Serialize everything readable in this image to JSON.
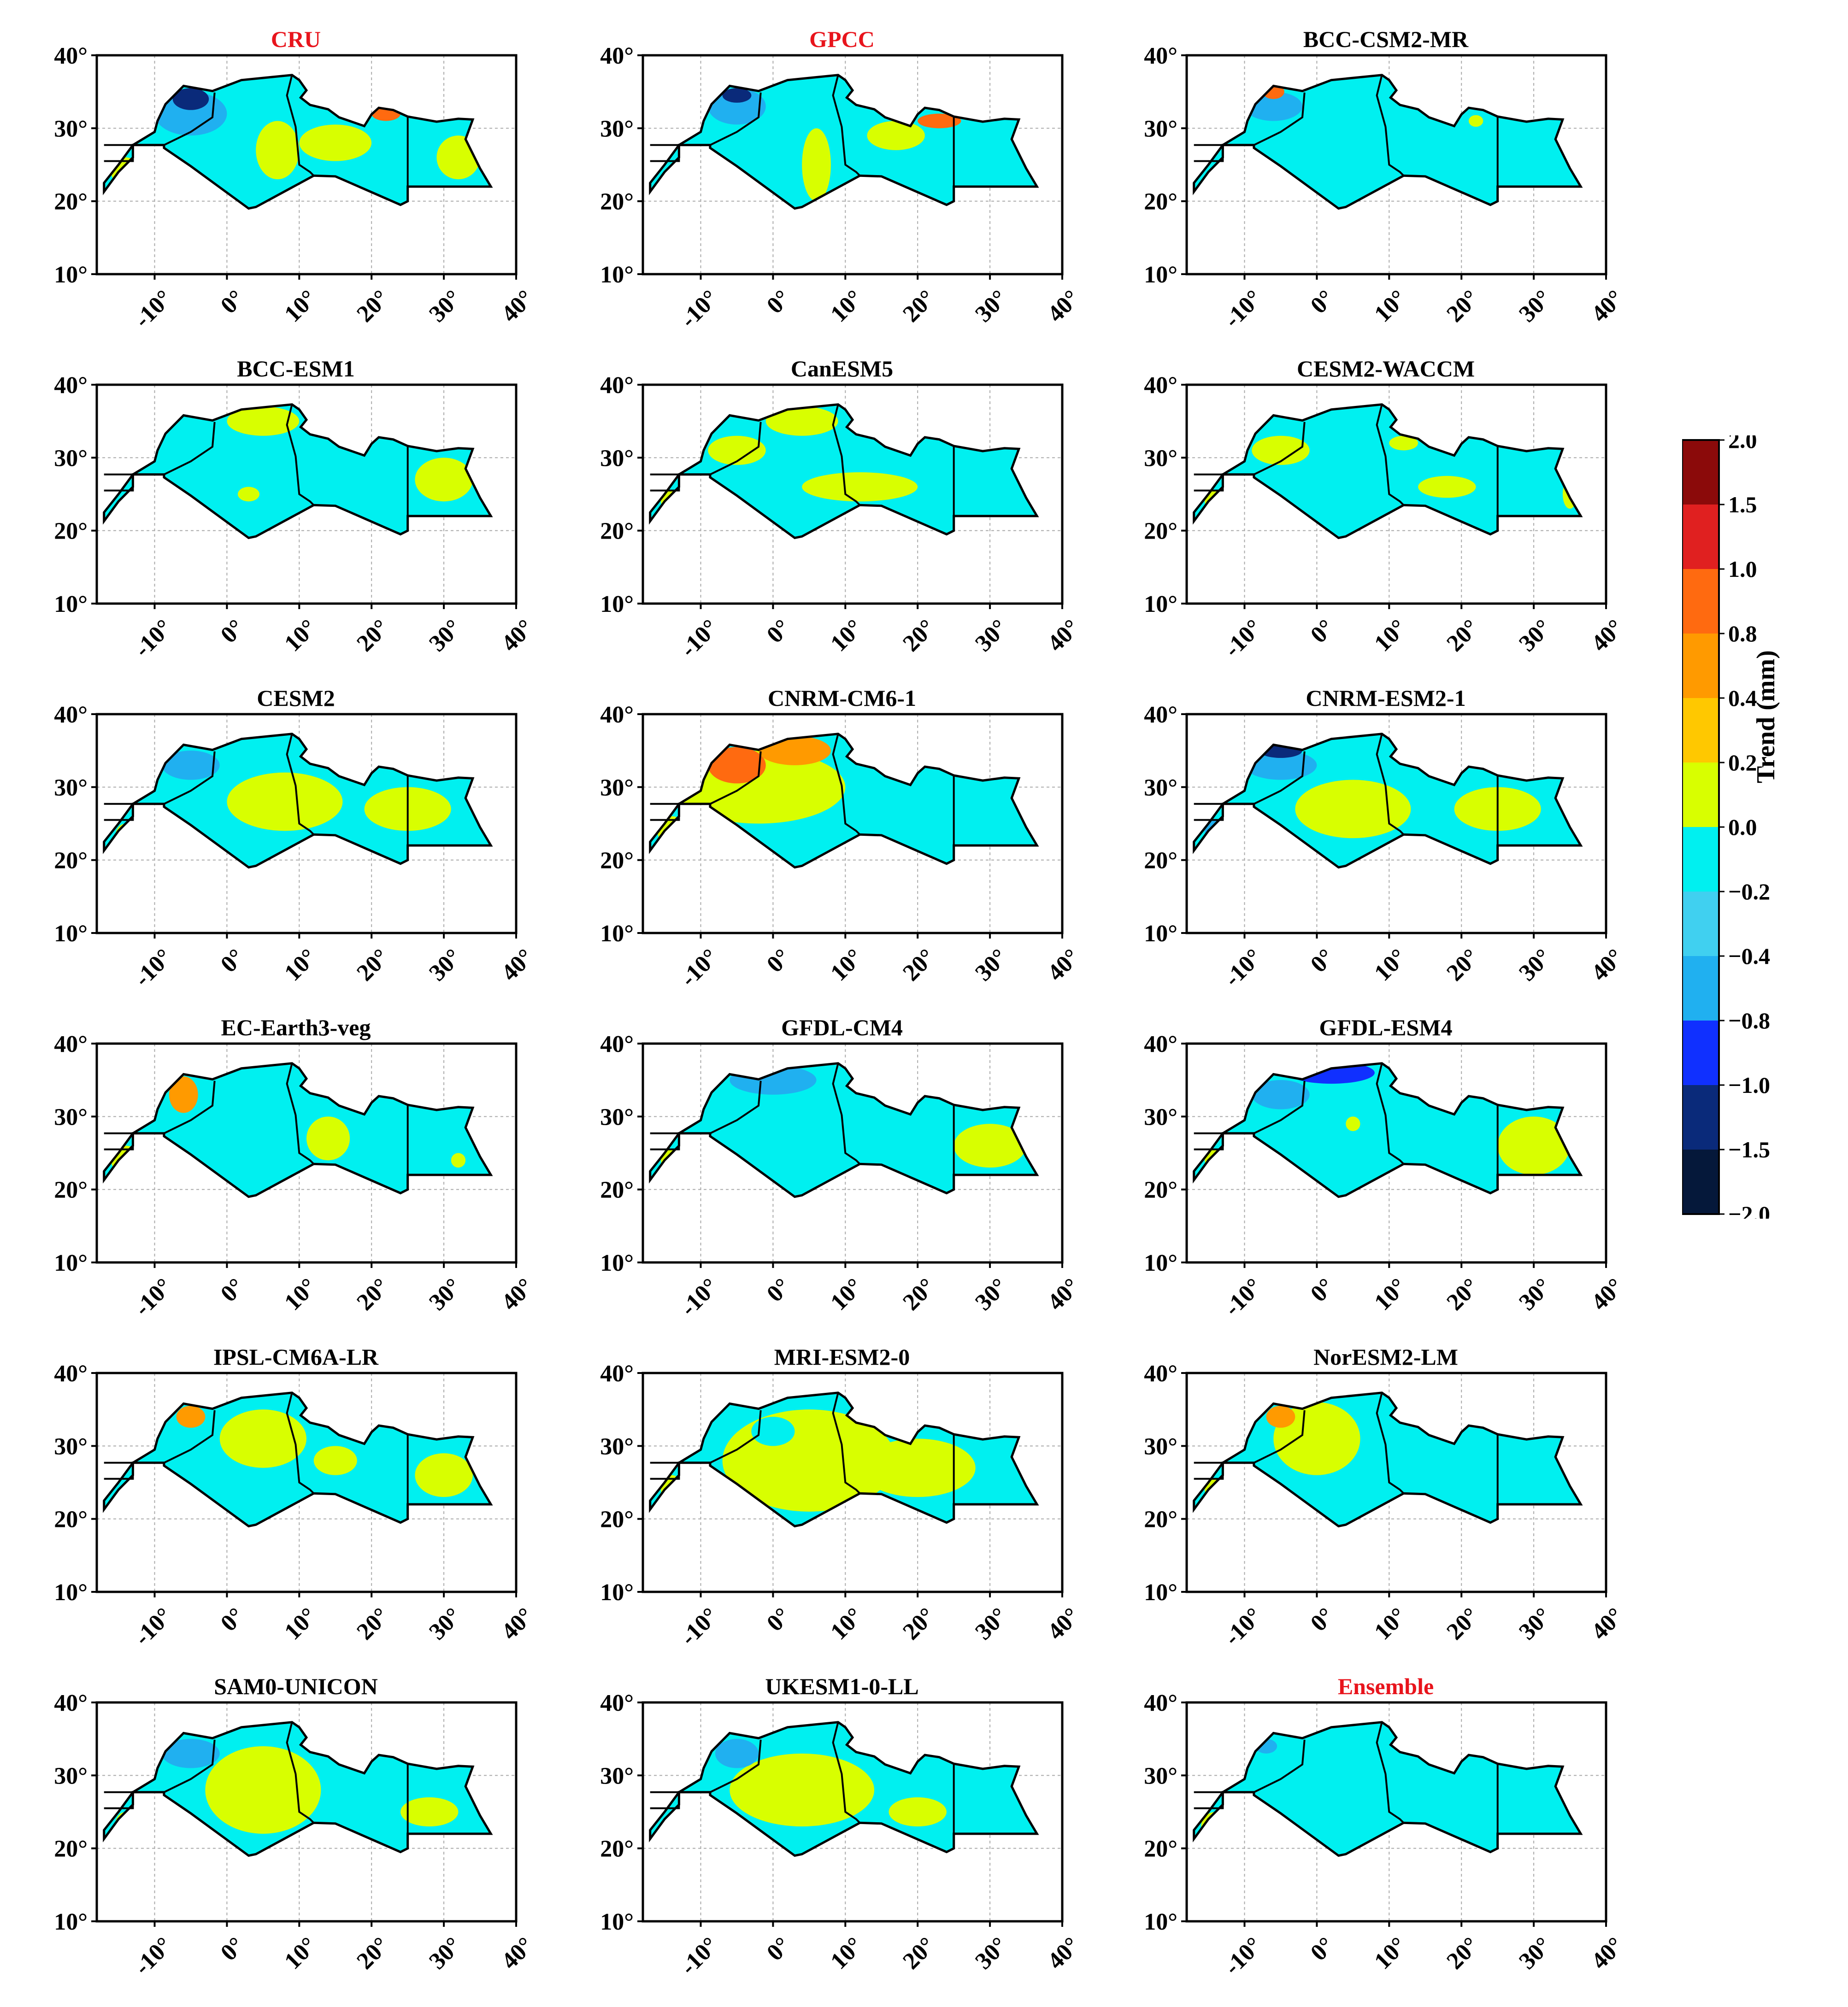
{
  "figure": {
    "colorbar": {
      "title": "Trend (mm)",
      "levels": [
        "2.0",
        "1.5",
        "1.0",
        "0.8",
        "0.4",
        "0.2",
        "0.0",
        "−0.2",
        "−0.4",
        "−0.8",
        "−1.0",
        "−1.5",
        "−2.0"
      ],
      "colors": [
        "#8b0a0a",
        "#e02020",
        "#ff6a10",
        "#ff9a00",
        "#ffc800",
        "#d8ff00",
        "#00f0f0",
        "#40d0f0",
        "#20b0f0",
        "#1030ff",
        "#0a2a7a",
        "#05183a"
      ]
    },
    "axes": {
      "yticks": [
        "10°",
        "20°",
        "30°",
        "40°"
      ],
      "xticks": [
        "-10°",
        "0°",
        "10°",
        "20°",
        "30°",
        "40°"
      ]
    },
    "panels": [
      {
        "title": "CRU",
        "title_color": "red"
      },
      {
        "title": "GPCC",
        "title_color": "red"
      },
      {
        "title": "BCC-CSM2-MR",
        "title_color": "black"
      },
      {
        "title": "BCC-ESM1",
        "title_color": "black"
      },
      {
        "title": "CanESM5",
        "title_color": "black"
      },
      {
        "title": "CESM2-WACCM",
        "title_color": "black"
      },
      {
        "title": "CESM2",
        "title_color": "black"
      },
      {
        "title": "CNRM-CM6-1",
        "title_color": "black"
      },
      {
        "title": "CNRM-ESM2-1",
        "title_color": "black"
      },
      {
        "title": "EC-Earth3-veg",
        "title_color": "black"
      },
      {
        "title": "GFDL-CM4",
        "title_color": "black"
      },
      {
        "title": "GFDL-ESM4",
        "title_color": "black"
      },
      {
        "title": "IPSL-CM6A-LR",
        "title_color": "black"
      },
      {
        "title": "MRI-ESM2-0",
        "title_color": "black"
      },
      {
        "title": "NorESM2-LM",
        "title_color": "black"
      },
      {
        "title": "SAM0-UNICON",
        "title_color": "black"
      },
      {
        "title": "UKESM1-0-LL",
        "title_color": "black"
      },
      {
        "title": "Ensemble",
        "title_color": "red"
      }
    ]
  }
}
